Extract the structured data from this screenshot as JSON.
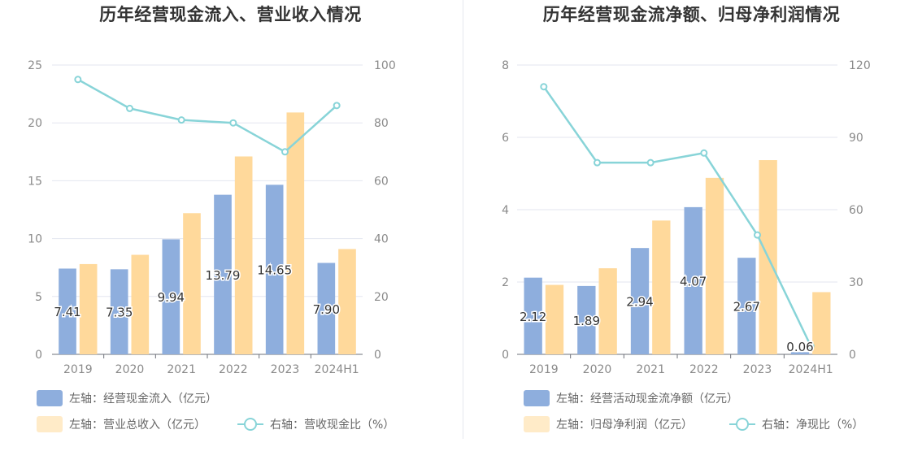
{
  "colors": {
    "bar1": "#8eaedd",
    "bar2": "#ffd99b",
    "line": "#88d4d8",
    "grid": "#e3e6ef",
    "swatch2": "#ffebc8"
  },
  "chart_data": [
    {
      "type": "bar",
      "title": "历年经营现金流入、营业收入情况",
      "categories": [
        "2019",
        "2020",
        "2021",
        "2022",
        "2023",
        "2024H1"
      ],
      "left_axis": {
        "ylim": [
          0,
          25
        ],
        "ticks": [
          "0",
          "5",
          "10",
          "15",
          "20",
          "25"
        ]
      },
      "right_axis": {
        "ylim": [
          0,
          100
        ],
        "ticks": [
          "0",
          "20",
          "40",
          "60",
          "80",
          "100"
        ]
      },
      "series": [
        {
          "name": "左轴：经营现金流入（亿元）",
          "axis": "left",
          "kind": "bar",
          "values": [
            7.41,
            7.35,
            9.94,
            13.79,
            14.65,
            7.9
          ],
          "labels": [
            "7.41",
            "7.35",
            "9.94",
            "13.79",
            "14.65",
            "7.90"
          ]
        },
        {
          "name": "左轴：营业总收入（亿元）",
          "axis": "left",
          "kind": "bar",
          "values": [
            7.8,
            8.6,
            12.2,
            17.1,
            20.9,
            9.1
          ]
        },
        {
          "name": "右轴：营收现金比（%）",
          "axis": "right",
          "kind": "line",
          "values": [
            95,
            85,
            81,
            80,
            70,
            86
          ]
        }
      ],
      "grid": true,
      "legend_position": "bottom-left"
    },
    {
      "type": "bar",
      "title": "历年经营现金流净额、归母净利润情况",
      "categories": [
        "2019",
        "2020",
        "2021",
        "2022",
        "2023",
        "2024H1"
      ],
      "left_axis": {
        "ylim": [
          0,
          8
        ],
        "ticks": [
          "0",
          "2",
          "4",
          "6",
          "8"
        ]
      },
      "right_axis": {
        "ylim": [
          0,
          120
        ],
        "ticks": [
          "0",
          "30",
          "60",
          "90",
          "120"
        ]
      },
      "series": [
        {
          "name": "左轴：经营活动现金流净额（亿元）",
          "axis": "left",
          "kind": "bar",
          "values": [
            2.12,
            1.89,
            2.94,
            4.07,
            2.67,
            0.06
          ],
          "labels": [
            "2.12",
            "1.89",
            "2.94",
            "4.07",
            "2.67",
            "0.06"
          ]
        },
        {
          "name": "左轴：归母净利润（亿元）",
          "axis": "left",
          "kind": "bar",
          "values": [
            1.92,
            2.38,
            3.7,
            4.88,
            5.37,
            1.72
          ]
        },
        {
          "name": "右轴：净现比（%）",
          "axis": "right",
          "kind": "line",
          "values": [
            111,
            79.5,
            79.5,
            83.5,
            49.5,
            3.5
          ]
        }
      ],
      "grid": true,
      "legend_position": "bottom-left"
    }
  ]
}
